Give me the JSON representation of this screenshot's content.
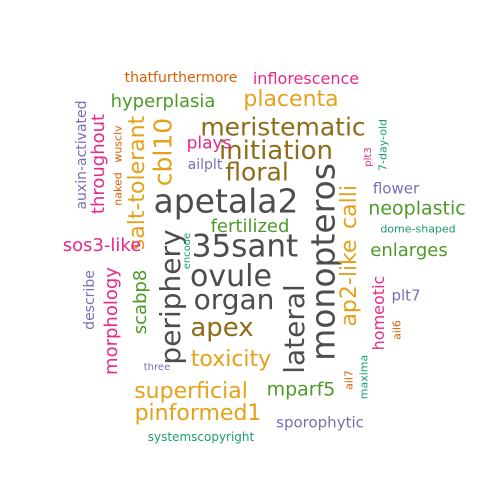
{
  "colors": {
    "background": "#ffffff",
    "gray": "#4d4d4d",
    "brown": "#8e6c19",
    "gold": "#e3a21a",
    "green": "#4d9a27",
    "teal": "#1b9e77",
    "orange": "#d95f02",
    "purple": "#7570b3",
    "magenta": "#e7298a"
  },
  "words": [
    {
      "text": "35sant",
      "color": "gray"
    },
    {
      "text": "apetala2",
      "color": "gray"
    },
    {
      "text": "ovule",
      "color": "gray"
    },
    {
      "text": "organ",
      "color": "gray"
    },
    {
      "text": "monopteros",
      "color": "gray"
    },
    {
      "text": "lateral",
      "color": "gray"
    },
    {
      "text": "periphery",
      "color": "gray"
    },
    {
      "text": "initiation",
      "color": "brown"
    },
    {
      "text": "meristematic",
      "color": "brown"
    },
    {
      "text": "floral",
      "color": "brown"
    },
    {
      "text": "apex",
      "color": "brown"
    },
    {
      "text": "cbl10",
      "color": "gold"
    },
    {
      "text": "placenta",
      "color": "gold"
    },
    {
      "text": "toxicity",
      "color": "gold"
    },
    {
      "text": "superficial",
      "color": "gold"
    },
    {
      "text": "pinformed1",
      "color": "gold"
    },
    {
      "text": "salt-tolerant",
      "color": "gold"
    },
    {
      "text": "ap2-like",
      "color": "gold"
    },
    {
      "text": "calli",
      "color": "gold"
    },
    {
      "text": "fertilized",
      "color": "green"
    },
    {
      "text": "neoplastic",
      "color": "green"
    },
    {
      "text": "enlarges",
      "color": "green"
    },
    {
      "text": "hyperplasia",
      "color": "green"
    },
    {
      "text": "scabp8",
      "color": "green"
    },
    {
      "text": "mparf5",
      "color": "green"
    },
    {
      "text": "sos3-like",
      "color": "magenta"
    },
    {
      "text": "throughout",
      "color": "magenta"
    },
    {
      "text": "morphology",
      "color": "magenta"
    },
    {
      "text": "plays",
      "color": "magenta"
    },
    {
      "text": "inflorescence",
      "color": "magenta"
    },
    {
      "text": "homeotic",
      "color": "magenta"
    },
    {
      "text": "plt3",
      "color": "magenta"
    },
    {
      "text": "thatfurthermore",
      "color": "orange"
    },
    {
      "text": "wusclv",
      "color": "orange"
    },
    {
      "text": "naked",
      "color": "orange"
    },
    {
      "text": "ail6",
      "color": "orange"
    },
    {
      "text": "ail7",
      "color": "orange"
    },
    {
      "text": "auxin-activated",
      "color": "purple"
    },
    {
      "text": "describe",
      "color": "purple"
    },
    {
      "text": "ailplt",
      "color": "purple"
    },
    {
      "text": "flower",
      "color": "purple"
    },
    {
      "text": "plt7",
      "color": "purple"
    },
    {
      "text": "sporophytic",
      "color": "purple"
    },
    {
      "text": "three",
      "color": "purple"
    },
    {
      "text": "dome-shaped",
      "color": "teal"
    },
    {
      "text": "7-day-old",
      "color": "teal"
    },
    {
      "text": "encode",
      "color": "teal"
    },
    {
      "text": "maxima",
      "color": "teal"
    },
    {
      "text": "systemscopyright",
      "color": "teal"
    }
  ]
}
